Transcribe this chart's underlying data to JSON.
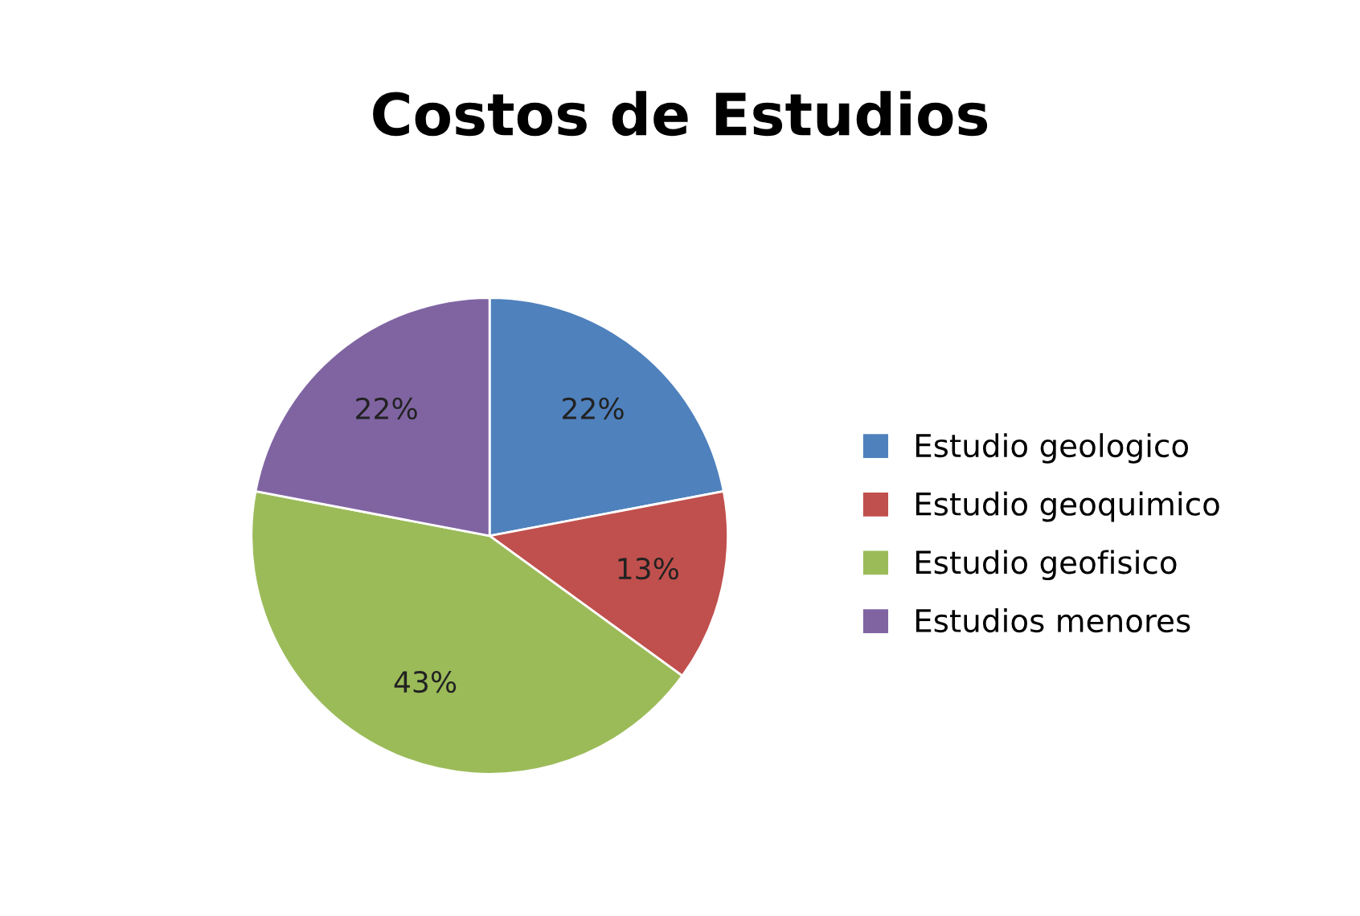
{
  "chart_data": {
    "type": "pie",
    "title": "Costos de Estudios",
    "categories": [
      "Estudio geologico",
      "Estudio geoquimico",
      "Estudio geofisico",
      "Estudios menores"
    ],
    "values": [
      22,
      13,
      43,
      22
    ],
    "colors": [
      "#4f81bd",
      "#c0504d",
      "#9bbb59",
      "#8064a2"
    ],
    "value_labels": [
      "22%",
      "13%",
      "43%",
      "22%"
    ],
    "legend": "right"
  }
}
